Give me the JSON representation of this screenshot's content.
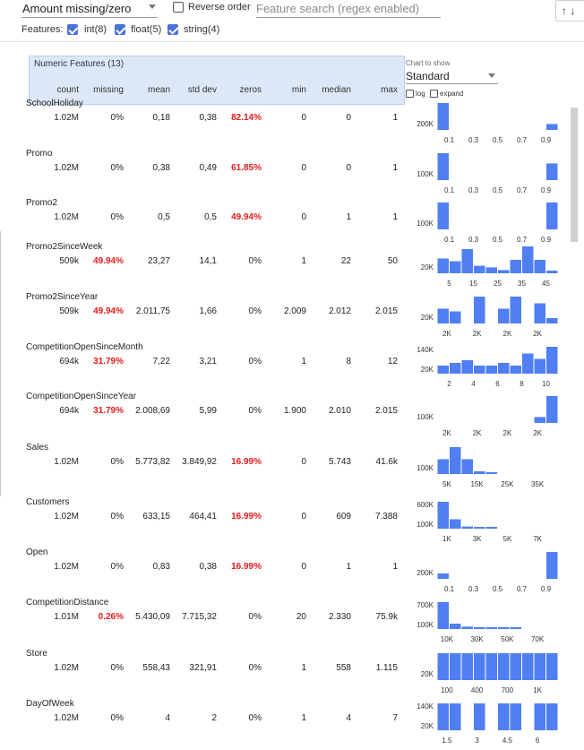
{
  "toolbar": {
    "sort_value": "Amount missing/zero",
    "reverse_label": "Reverse order",
    "reverse_checked": false,
    "search_placeholder": "Feature search (regex enabled)",
    "sort_arrows": "↑ ↓"
  },
  "features_filter": {
    "label": "Features:",
    "items": [
      {
        "label": "int(8)",
        "checked": true
      },
      {
        "label": "float(5)",
        "checked": true
      },
      {
        "label": "string(4)",
        "checked": true
      }
    ]
  },
  "table": {
    "title": "Numeric Features (13)",
    "columns": [
      "count",
      "missing",
      "mean",
      "std dev",
      "zeros",
      "min",
      "median",
      "max"
    ],
    "chart_to_show_label": "Chart to show",
    "chart_type": "Standard",
    "log_label": "log",
    "expand_label": "expand"
  },
  "colors": {
    "accent": "#4f7ff2",
    "highlight": "#e51c1c",
    "header_bg": "#dce8f7"
  },
  "features": [
    {
      "name": "SchoolHoliday",
      "count": "1.02M",
      "missing": "0%",
      "mean": "0,18",
      "std": "0,38",
      "zeros": "82.14%",
      "min": "0",
      "median": "0",
      "max": "1",
      "y_labels": [
        "200K"
      ],
      "x_labels": [
        "0.1",
        "0.3",
        "0.5",
        "0.7",
        "0.9"
      ],
      "bars": [
        1,
        0,
        0,
        0,
        0,
        0,
        0,
        0,
        0,
        0.22
      ]
    },
    {
      "name": "Promo",
      "count": "1.02M",
      "missing": "0%",
      "mean": "0,38",
      "std": "0,49",
      "zeros": "61.85%",
      "min": "0",
      "median": "0",
      "max": "1",
      "y_labels": [
        "100K"
      ],
      "x_labels": [
        "0.1",
        "0.3",
        "0.5",
        "0.7",
        "0.9"
      ],
      "bars": [
        1,
        0,
        0,
        0,
        0,
        0,
        0,
        0,
        0,
        0.62
      ]
    },
    {
      "name": "Promo2",
      "count": "1.02M",
      "missing": "0%",
      "mean": "0,5",
      "std": "0,5",
      "zeros": "49.94%",
      "min": "0",
      "median": "1",
      "max": "1",
      "y_labels": [
        "100K"
      ],
      "x_labels": [
        "0.1",
        "0.3",
        "0.5",
        "0.7",
        "0.9"
      ],
      "bars": [
        1,
        0,
        0,
        0,
        0,
        0,
        0,
        0,
        0,
        1
      ]
    },
    {
      "name": "Promo2SinceWeek",
      "count": "509k",
      "missing": "49.94%",
      "mean": "23,27",
      "std": "14,1",
      "zeros": "0%",
      "min": "1",
      "median": "22",
      "max": "50",
      "y_labels": [
        "20K"
      ],
      "x_labels": [
        "5",
        "15",
        "25",
        "35",
        "45"
      ],
      "bars": [
        0.55,
        0.45,
        0.9,
        0.28,
        0.22,
        0.12,
        0.5,
        1,
        0.5,
        0.1
      ]
    },
    {
      "name": "Promo2SinceYear",
      "count": "509k",
      "missing": "49.94%",
      "mean": "2.011,75",
      "std": "1,66",
      "zeros": "0%",
      "min": "2.009",
      "median": "2.012",
      "max": "2.015",
      "y_labels": [
        "20K"
      ],
      "x_labels": [
        "2K",
        "2K",
        "2K",
        "2K"
      ],
      "bars": [
        0.55,
        0.45,
        0,
        1,
        0,
        0.55,
        1,
        0,
        0.75,
        0.2
      ]
    },
    {
      "name": "CompetitionOpenSinceMonth",
      "count": "694k",
      "missing": "31.79%",
      "mean": "7,22",
      "std": "3,21",
      "zeros": "0%",
      "min": "1",
      "median": "8",
      "max": "12",
      "y_labels": [
        "140K",
        "20K"
      ],
      "x_labels": [
        "2",
        "4",
        "6",
        "8",
        "10"
      ],
      "bars": [
        0.3,
        0.4,
        0.5,
        0.3,
        0.3,
        0.4,
        0.3,
        0.75,
        0.55,
        1
      ]
    },
    {
      "name": "CompetitionOpenSinceYear",
      "count": "694k",
      "missing": "31.79%",
      "mean": "2.008,69",
      "std": "5,99",
      "zeros": "0%",
      "min": "1.900",
      "median": "2.010",
      "max": "2.015",
      "y_labels": [
        "100K"
      ],
      "x_labels": [
        "2K",
        "2K",
        "2K",
        "2K"
      ],
      "bars": [
        0,
        0,
        0,
        0,
        0,
        0,
        0,
        0,
        0.22,
        1
      ]
    },
    {
      "name": "Sales",
      "count": "1.02M",
      "missing": "0%",
      "mean": "5.773,82",
      "std": "3.849,92",
      "zeros": "16.99%",
      "min": "0",
      "median": "5.743",
      "max": "41.6k",
      "y_labels": [
        "100K"
      ],
      "x_labels": [
        "5K",
        "15K",
        "25K",
        "35K"
      ],
      "bars": [
        0.55,
        1,
        0.55,
        0.1,
        0.03,
        0,
        0,
        0,
        0,
        0
      ]
    },
    {
      "name": "Customers",
      "count": "1.02M",
      "missing": "0%",
      "mean": "633,15",
      "std": "464,41",
      "zeros": "16.99%",
      "min": "0",
      "median": "609",
      "max": "7.388",
      "y_labels": [
        "600K",
        "100K"
      ],
      "x_labels": [
        "1K",
        "3K",
        "5K",
        "7K"
      ],
      "bars": [
        1,
        0.35,
        0.08,
        0.03,
        0.01,
        0,
        0,
        0,
        0,
        0
      ]
    },
    {
      "name": "Open",
      "count": "1.02M",
      "missing": "0%",
      "mean": "0,83",
      "std": "0,38",
      "zeros": "16.99%",
      "min": "0",
      "median": "1",
      "max": "1",
      "y_labels": [
        "200K"
      ],
      "x_labels": [
        "0.1",
        "0.3",
        "0.5",
        "0.7",
        "0.9"
      ],
      "bars": [
        0.2,
        0,
        0,
        0,
        0,
        0,
        0,
        0,
        0,
        1
      ]
    },
    {
      "name": "CompetitionDistance",
      "count": "1.01M",
      "missing": "0.26%",
      "mean": "5.430,09",
      "std": "7.715,32",
      "zeros": "0%",
      "min": "20",
      "median": "2.330",
      "max": "75.9k",
      "y_labels": [
        "700K",
        "100K"
      ],
      "x_labels": [
        "10K",
        "30K",
        "50K",
        "70K"
      ],
      "bars": [
        1,
        0.2,
        0.09,
        0.04,
        0.02,
        0.01,
        0.01,
        0,
        0,
        0
      ]
    },
    {
      "name": "Store",
      "count": "1.02M",
      "missing": "0%",
      "mean": "558,43",
      "std": "321,91",
      "zeros": "0%",
      "min": "1",
      "median": "558",
      "max": "1.115",
      "y_labels": [
        "20K"
      ],
      "x_labels": [
        "100",
        "400",
        "700",
        "1K"
      ],
      "bars": [
        1,
        1,
        1,
        1,
        1,
        1,
        1,
        1,
        1,
        1
      ]
    },
    {
      "name": "DayOfWeek",
      "count": "1.02M",
      "missing": "0%",
      "mean": "4",
      "std": "2",
      "zeros": "0%",
      "min": "1",
      "median": "4",
      "max": "7",
      "y_labels": [
        "140K",
        "20K"
      ],
      "x_labels": [
        "1.5",
        "3",
        "4.5",
        "6"
      ],
      "bars": [
        1,
        1,
        0,
        1,
        0,
        1,
        1,
        0,
        1,
        1
      ]
    }
  ]
}
